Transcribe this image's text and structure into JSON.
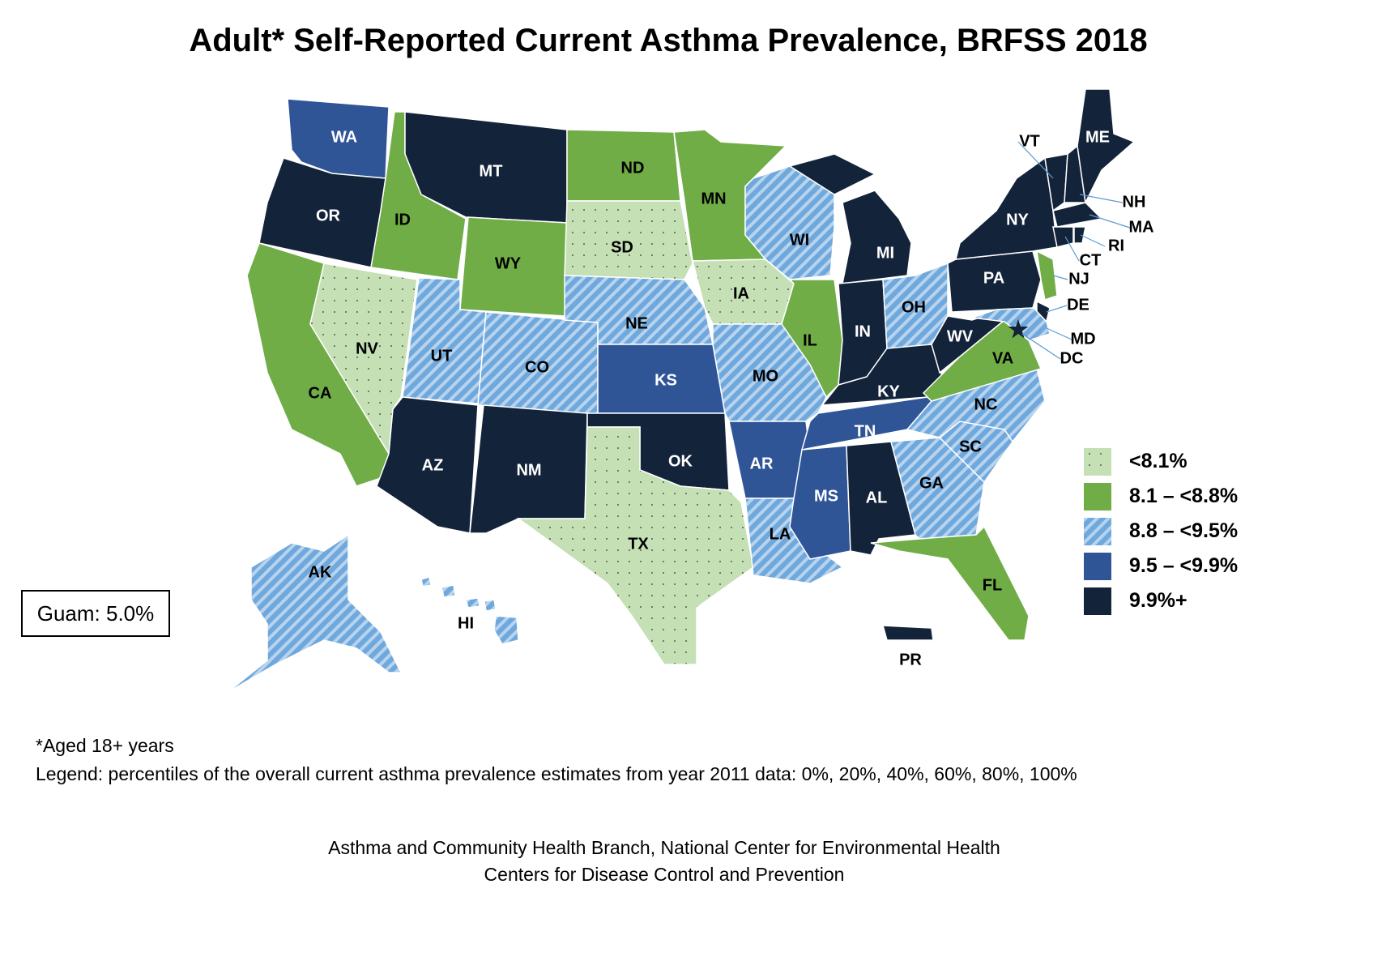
{
  "title": "Adult* Self-Reported Current Asthma Prevalence, BRFSS 2018",
  "guam": "Guam: 5.0%",
  "legend": [
    {
      "key": "c1",
      "label": "<8.1%",
      "color": "#c5e0b4",
      "pattern": "dots"
    },
    {
      "key": "c2",
      "label": "8.1 – <8.8%",
      "color": "#70ad47",
      "pattern": "solid"
    },
    {
      "key": "c3",
      "label": "8.8 – <9.5%",
      "color": "#6fa8dc",
      "pattern": "stripes"
    },
    {
      "key": "c4",
      "label": "9.5 – <9.9%",
      "color": "#2f5597",
      "pattern": "solid"
    },
    {
      "key": "c5",
      "label": "9.9%+",
      "color": "#13233a",
      "pattern": "solid"
    }
  ],
  "footnote": "*Aged 18+ years",
  "legend_note": "Legend: percentiles of the overall current asthma prevalence estimates from year 2011 data: 0%, 20%, 40%, 60%, 80%, 100%",
  "credit_line1": "Asthma and Community Health Branch, National Center for Environmental Health",
  "credit_line2": "Centers for Disease Control and Prevention",
  "states": [
    {
      "abbr": "WA",
      "cat": "c4"
    },
    {
      "abbr": "OR",
      "cat": "c5"
    },
    {
      "abbr": "CA",
      "cat": "c2"
    },
    {
      "abbr": "NV",
      "cat": "c1"
    },
    {
      "abbr": "ID",
      "cat": "c2"
    },
    {
      "abbr": "MT",
      "cat": "c5"
    },
    {
      "abbr": "WY",
      "cat": "c2"
    },
    {
      "abbr": "UT",
      "cat": "c3"
    },
    {
      "abbr": "CO",
      "cat": "c3"
    },
    {
      "abbr": "AZ",
      "cat": "c5"
    },
    {
      "abbr": "NM",
      "cat": "c5"
    },
    {
      "abbr": "ND",
      "cat": "c2"
    },
    {
      "abbr": "SD",
      "cat": "c1"
    },
    {
      "abbr": "NE",
      "cat": "c3"
    },
    {
      "abbr": "KS",
      "cat": "c4"
    },
    {
      "abbr": "OK",
      "cat": "c5"
    },
    {
      "abbr": "TX",
      "cat": "c1"
    },
    {
      "abbr": "MN",
      "cat": "c2"
    },
    {
      "abbr": "IA",
      "cat": "c1"
    },
    {
      "abbr": "MO",
      "cat": "c3"
    },
    {
      "abbr": "AR",
      "cat": "c4"
    },
    {
      "abbr": "LA",
      "cat": "c3"
    },
    {
      "abbr": "WI",
      "cat": "c3"
    },
    {
      "abbr": "IL",
      "cat": "c2"
    },
    {
      "abbr": "MI",
      "cat": "c5"
    },
    {
      "abbr": "IN",
      "cat": "c5"
    },
    {
      "abbr": "OH",
      "cat": "c3"
    },
    {
      "abbr": "KY",
      "cat": "c5"
    },
    {
      "abbr": "TN",
      "cat": "c4"
    },
    {
      "abbr": "MS",
      "cat": "c4"
    },
    {
      "abbr": "AL",
      "cat": "c5"
    },
    {
      "abbr": "GA",
      "cat": "c3"
    },
    {
      "abbr": "FL",
      "cat": "c2"
    },
    {
      "abbr": "SC",
      "cat": "c3"
    },
    {
      "abbr": "NC",
      "cat": "c3"
    },
    {
      "abbr": "VA",
      "cat": "c2"
    },
    {
      "abbr": "WV",
      "cat": "c5"
    },
    {
      "abbr": "PA",
      "cat": "c5"
    },
    {
      "abbr": "NY",
      "cat": "c5"
    },
    {
      "abbr": "NJ",
      "cat": "c2"
    },
    {
      "abbr": "DE",
      "cat": "c5"
    },
    {
      "abbr": "MD",
      "cat": "c3"
    },
    {
      "abbr": "DC",
      "cat": "c5"
    },
    {
      "abbr": "VT",
      "cat": "c5"
    },
    {
      "abbr": "NH",
      "cat": "c5"
    },
    {
      "abbr": "ME",
      "cat": "c5"
    },
    {
      "abbr": "MA",
      "cat": "c5"
    },
    {
      "abbr": "CT",
      "cat": "c5"
    },
    {
      "abbr": "RI",
      "cat": "c5"
    },
    {
      "abbr": "AK",
      "cat": "c3"
    },
    {
      "abbr": "HI",
      "cat": "c3"
    },
    {
      "abbr": "PR",
      "cat": "c5"
    }
  ]
}
